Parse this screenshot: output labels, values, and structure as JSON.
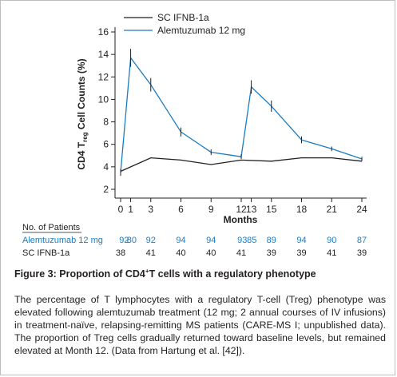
{
  "chart_data": {
    "type": "line",
    "xlabel": "Months",
    "ylabel_parts": {
      "before": "CD4 T",
      "sub": "reg",
      "after": " Cell Counts (%)"
    },
    "x_ticks": [
      0,
      1,
      3,
      6,
      9,
      12,
      13,
      15,
      18,
      21,
      24
    ],
    "x_tick_labels": [
      "0",
      "1",
      "3",
      "6",
      "9",
      "12",
      "13",
      "15",
      "18",
      "21",
      "24"
    ],
    "y_ticks": [
      2,
      4,
      6,
      8,
      10,
      12,
      14,
      16
    ],
    "y_tick_labels": [
      "2",
      "4",
      "6",
      "8",
      "10",
      "12",
      "14",
      "16"
    ],
    "ylim": [
      2,
      16
    ],
    "xlim": [
      0,
      24
    ],
    "legend_position": "top-left",
    "series": [
      {
        "name": "SC IFNB-1a",
        "color": "#231f20",
        "x": [
          0,
          3,
          6,
          9,
          12,
          15,
          18,
          21,
          24
        ],
        "y": [
          3.6,
          4.8,
          4.6,
          4.2,
          4.6,
          4.5,
          4.8,
          4.8,
          4.5
        ]
      },
      {
        "name": "Alemtuzumab 12 mg",
        "color": "#1a7dc2",
        "x": [
          0,
          1,
          3,
          6,
          9,
          12,
          13,
          15,
          18,
          21,
          24
        ],
        "y": [
          3.5,
          13.7,
          11.3,
          7.1,
          5.3,
          4.9,
          11.1,
          9.4,
          6.4,
          5.6,
          4.7
        ],
        "err": [
          0.3,
          0.8,
          0.6,
          0.4,
          0.25,
          0.2,
          0.6,
          0.5,
          0.3,
          0.2,
          0.2
        ]
      }
    ],
    "patients_header": "No. of Patients",
    "patients": [
      {
        "label": "Alemtuzumab 12 mg",
        "color": "#1a7dc2",
        "x": [
          0.35,
          1.1,
          3,
          6,
          9,
          12.1,
          13.05,
          15,
          18,
          21,
          24
        ],
        "values": [
          "92",
          "80",
          "92",
          "94",
          "94",
          "93",
          "85",
          "89",
          "94",
          "90",
          "87"
        ]
      },
      {
        "label": "SC IFNB-1a",
        "color": "#231f20",
        "x": [
          0,
          3,
          6,
          9,
          12,
          15,
          18,
          21,
          24
        ],
        "values": [
          "38",
          "41",
          "40",
          "40",
          "41",
          "39",
          "39",
          "41",
          "39"
        ]
      }
    ]
  },
  "caption": {
    "title_before": "Figure 3: Proportion of CD4",
    "title_sup": "+",
    "title_after": "T cells with a regulatory phenotype",
    "body": "The percentage of T lymphocytes with a regulatory T-cell (Treg) phenotype was elevated following alemtuzumab treatment (12 mg; 2 annual courses of IV infusions) in treatment-naïve, relapsing-remitting MS patients (CARE-MS I; unpublished data). The proportion of Treg cells gradually returned toward baseline levels, but remained elevated at Month 12. (Data from Hartung et al. [42])."
  }
}
